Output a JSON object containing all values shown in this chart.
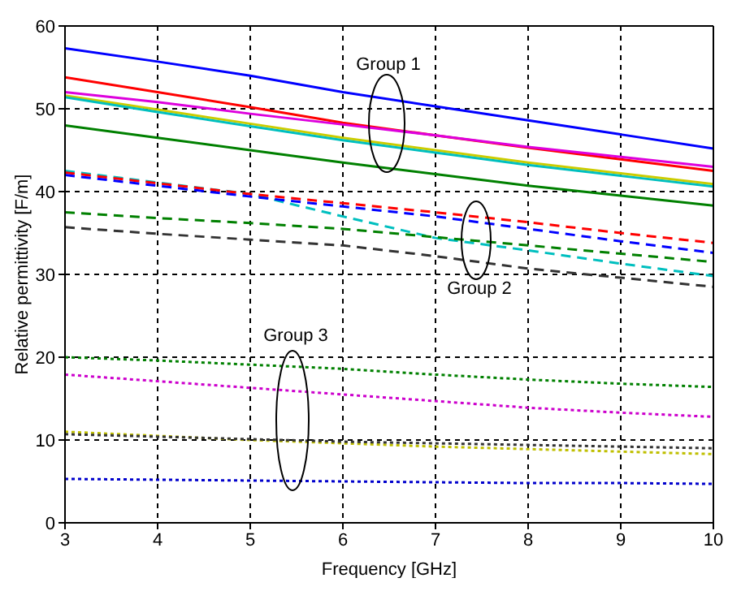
{
  "chart_data": {
    "type": "line",
    "xlabel": "Frequency [GHz]",
    "ylabel": "Relative permittivity [F/m]",
    "x": [
      3,
      4,
      5,
      6,
      7,
      8,
      9,
      10
    ],
    "xlim": [
      3,
      10
    ],
    "xticks": [
      3,
      4,
      5,
      6,
      7,
      8,
      9,
      10
    ],
    "ylim": [
      0,
      60
    ],
    "yticks": [
      0,
      10,
      20,
      30,
      40,
      50,
      60
    ],
    "grid": true,
    "legend": false,
    "marker": "none",
    "series": [
      {
        "color": "#0000ff",
        "line_style": "solid",
        "values": [
          57.3,
          55.7,
          54.0,
          52.0,
          50.3,
          48.6,
          46.9,
          45.2
        ]
      },
      {
        "color": "#ff0000",
        "line_style": "solid",
        "values": [
          53.8,
          52.0,
          50.2,
          48.3,
          46.8,
          45.3,
          43.9,
          42.5
        ]
      },
      {
        "color": "#dd00dd",
        "line_style": "solid",
        "values": [
          52.0,
          50.8,
          49.4,
          48.1,
          46.8,
          45.4,
          44.2,
          43.0
        ]
      },
      {
        "color": "#cccc00",
        "line_style": "solid",
        "values": [
          51.6,
          49.9,
          48.2,
          46.5,
          45.0,
          43.5,
          42.2,
          40.9
        ]
      },
      {
        "color": "#00bfbf",
        "line_style": "solid",
        "values": [
          51.4,
          49.6,
          47.9,
          46.2,
          44.7,
          43.2,
          41.9,
          40.6
        ]
      },
      {
        "color": "#008000",
        "line_style": "solid",
        "values": [
          48.0,
          46.5,
          45.0,
          43.5,
          42.1,
          40.7,
          39.5,
          38.3
        ]
      },
      {
        "color": "#00bfbf",
        "line_style": "dashed",
        "values": [
          42.5,
          41.1,
          39.7,
          37.0,
          34.4,
          32.9,
          31.3,
          29.8
        ]
      },
      {
        "color": "#ff0000",
        "line_style": "dashed",
        "values": [
          42.3,
          41.0,
          39.7,
          38.6,
          37.5,
          36.3,
          35.0,
          33.8
        ]
      },
      {
        "color": "#0000ff",
        "line_style": "dashed",
        "values": [
          42.0,
          40.7,
          39.4,
          38.2,
          37.0,
          35.5,
          34.0,
          32.6
        ]
      },
      {
        "color": "#008000",
        "line_style": "dashed",
        "values": [
          37.5,
          36.8,
          36.2,
          35.5,
          34.5,
          33.5,
          32.5,
          31.5
        ]
      },
      {
        "color": "#333333",
        "line_style": "dashed",
        "values": [
          35.7,
          34.9,
          34.2,
          33.5,
          32.2,
          30.7,
          29.6,
          28.5
        ]
      },
      {
        "color": "#008000",
        "line_style": "dotted",
        "values": [
          20.0,
          19.6,
          19.1,
          18.6,
          17.9,
          17.3,
          16.8,
          16.4
        ]
      },
      {
        "color": "#cc00cc",
        "line_style": "dotted",
        "values": [
          17.9,
          17.1,
          16.3,
          15.5,
          14.7,
          13.9,
          13.3,
          12.8
        ]
      },
      {
        "color": "#bfbf00",
        "line_style": "dotted",
        "values": [
          11.0,
          10.5,
          10.0,
          9.6,
          9.2,
          8.9,
          8.6,
          8.3
        ]
      },
      {
        "color": "#333333",
        "line_style": "dotted",
        "values": [
          10.7,
          10.4,
          10.1,
          9.8,
          9.6,
          9.4,
          9.2,
          9.0
        ]
      },
      {
        "color": "#0000cc",
        "line_style": "dotted",
        "values": [
          5.3,
          5.2,
          5.1,
          5.0,
          4.9,
          4.8,
          4.8,
          4.7
        ]
      }
    ],
    "annotations": [
      "Group 1",
      "Group 2",
      "Group 3"
    ]
  }
}
